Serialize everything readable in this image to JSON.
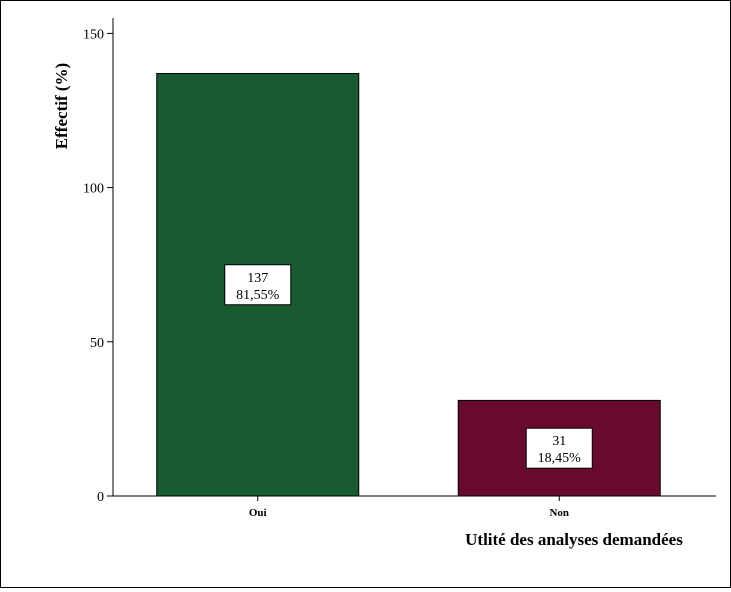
{
  "chart_data": {
    "type": "bar",
    "title": "",
    "xlabel": "Utlité des analyses demandées",
    "ylabel": "Effectif (%)",
    "ylim": [
      0,
      155
    ],
    "yticks": [
      0,
      50,
      100,
      150
    ],
    "grid": false,
    "categories": [
      "Oui",
      "Non"
    ],
    "values": [
      137,
      31
    ],
    "labels": [
      {
        "count": "137",
        "percent": "81,55%"
      },
      {
        "count": "31",
        "percent": "18,45%"
      }
    ],
    "colors": [
      "#185B30",
      "#670A2D"
    ]
  }
}
